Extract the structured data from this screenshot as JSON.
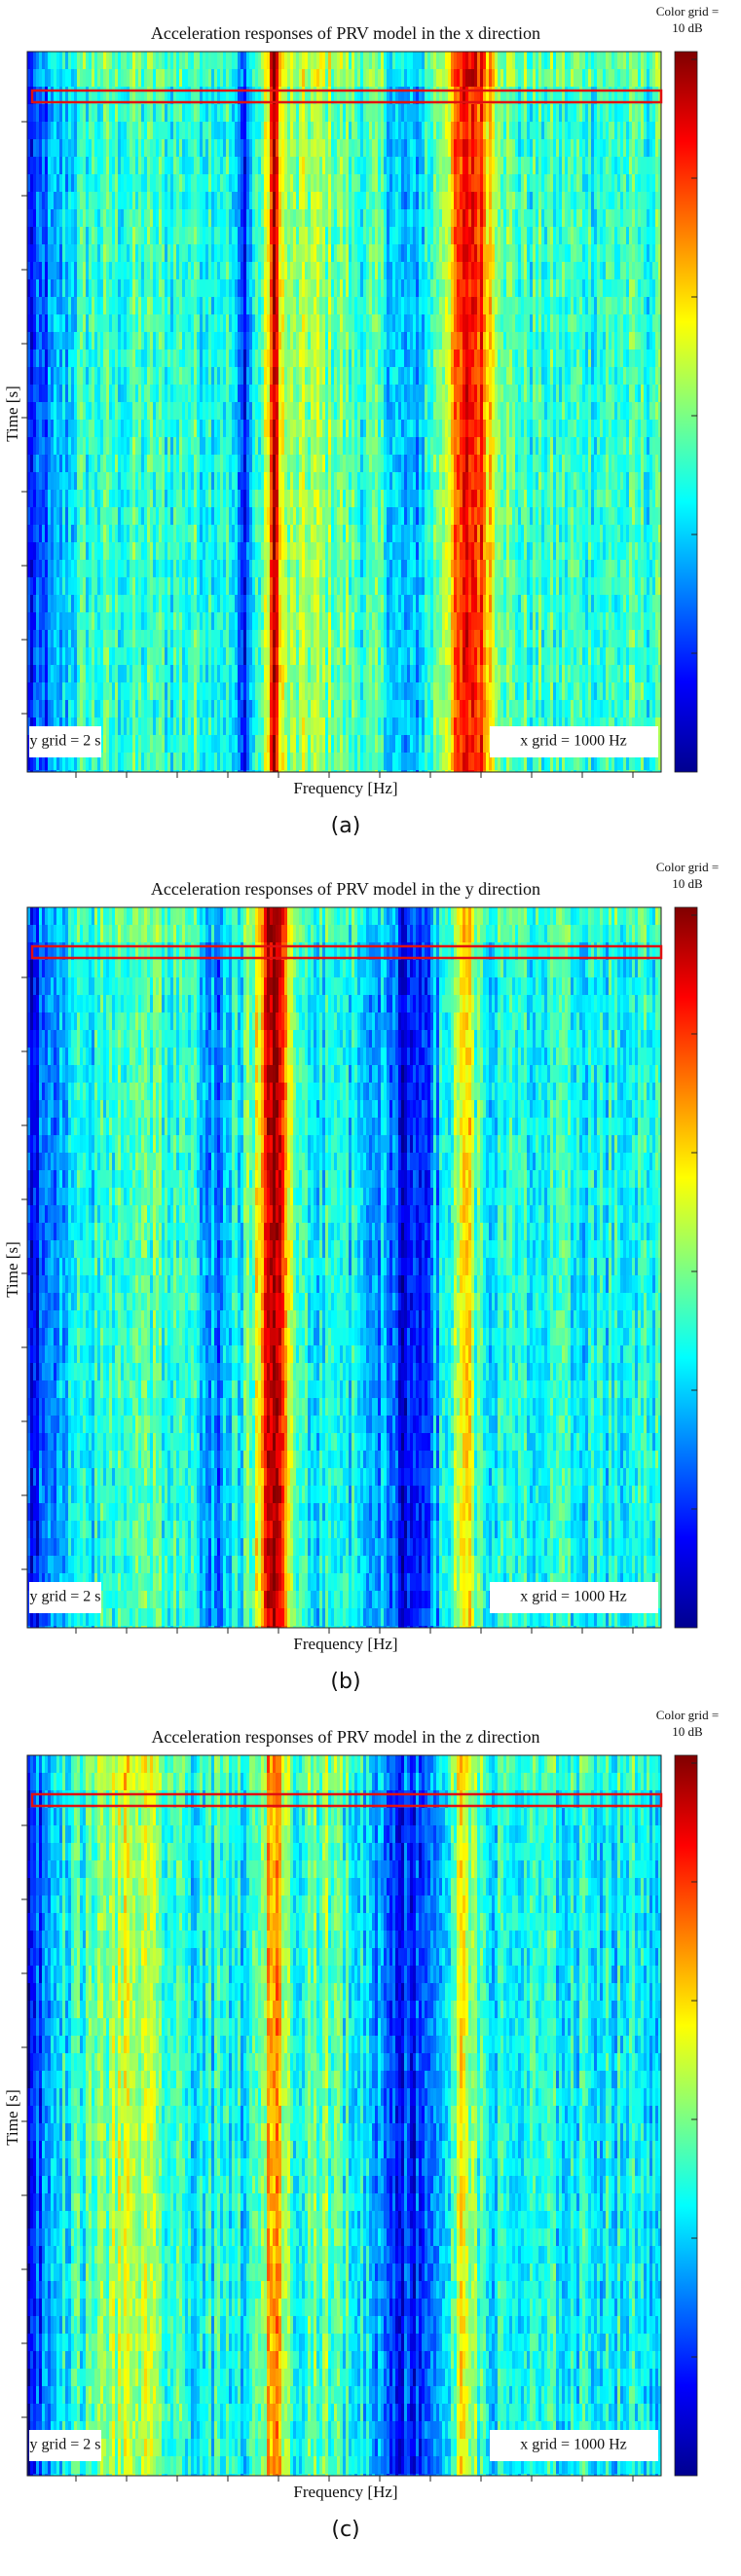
{
  "panels": [
    {
      "title": "Acceleration responses of PRV model in the x direction",
      "colorbar_label_line1": "Color grid =",
      "colorbar_label_line2": "10 dB",
      "y_label": "Time [s]",
      "x_label": "Frequency [Hz]",
      "y_grid_note": "y grid = 2 s",
      "x_grid_note": "x grid = 1000 Hz",
      "caption": "(a)"
    },
    {
      "title": "Acceleration responses of PRV model in the y direction",
      "colorbar_label_line1": "Color grid =",
      "colorbar_label_line2": "10 dB",
      "y_label": "Time [s]",
      "x_label": "Frequency [Hz]",
      "y_grid_note": "y grid = 2 s",
      "x_grid_note": "x grid = 1000 Hz",
      "caption": "(b)"
    },
    {
      "title": "Acceleration responses of PRV model in the z direction",
      "colorbar_label_line1": "Color grid =",
      "colorbar_label_line2": "10 dB",
      "y_label": "Time [s]",
      "x_label": "Frequency [Hz]",
      "y_grid_note": "y grid = 2 s",
      "x_grid_note": "x grid = 1000 Hz",
      "caption": "(c)"
    }
  ]
}
